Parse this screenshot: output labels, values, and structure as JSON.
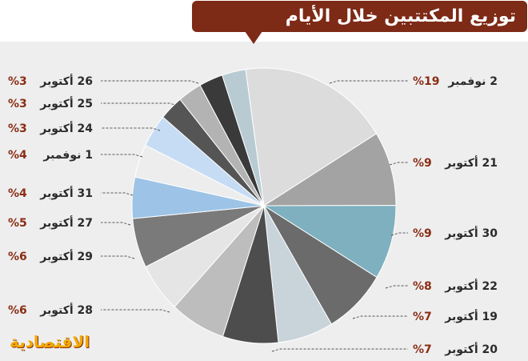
{
  "title": "توزيع المكتتبين خلال الأيام",
  "brand": "الاقتصادية",
  "chart_data": {
    "type": "pie",
    "title": "توزيع المكتتبين خلال الأيام",
    "slices": [
      {
        "label": "2 نوفمبر",
        "value": 19,
        "display": "%19",
        "color": "#dcdcdc"
      },
      {
        "label": "21 أكتوبر",
        "value": 9,
        "display": "%9",
        "color": "#a3a3a3"
      },
      {
        "label": "30 أكتوبر",
        "value": 9,
        "display": "%9",
        "color": "#7eb0bf"
      },
      {
        "label": "22 أكتوبر",
        "value": 8,
        "display": "%8",
        "color": "#6b6b6b"
      },
      {
        "label": "19 أكتوبر",
        "value": 7,
        "display": "%7",
        "color": "#c9d3da"
      },
      {
        "label": "20 أكتوبر",
        "value": 7,
        "display": "%7",
        "color": "#4d4d4d"
      },
      {
        "label": "",
        "value": 7,
        "display": "",
        "color": "#bdbdbd"
      },
      {
        "label": "28 أكتوبر",
        "value": 6,
        "display": "%6",
        "color": "#e5e5e5"
      },
      {
        "label": "29 أكتوبر",
        "value": 6,
        "display": "%6",
        "color": "#7a7a7a"
      },
      {
        "label": "27 أكتوبر",
        "value": 5,
        "display": "%5",
        "color": "#9dc4e6"
      },
      {
        "label": "31 أكتوبر",
        "value": 4,
        "display": "%4",
        "color": "#ededed"
      },
      {
        "label": "1 نوفمبر",
        "value": 4,
        "display": "%4",
        "color": "#c6dcf4"
      },
      {
        "label": "24 أكتوبر",
        "value": 3,
        "display": "%3",
        "color": "#555555"
      },
      {
        "label": "25 أكتوبر",
        "value": 3,
        "display": "%3",
        "color": "#b3b3b3"
      },
      {
        "label": "26 أكتوبر",
        "value": 3,
        "display": "%3",
        "color": "#3a3a3a"
      },
      {
        "label": "",
        "value": 3,
        "display": "",
        "color": "#b8cbd3"
      }
    ]
  }
}
